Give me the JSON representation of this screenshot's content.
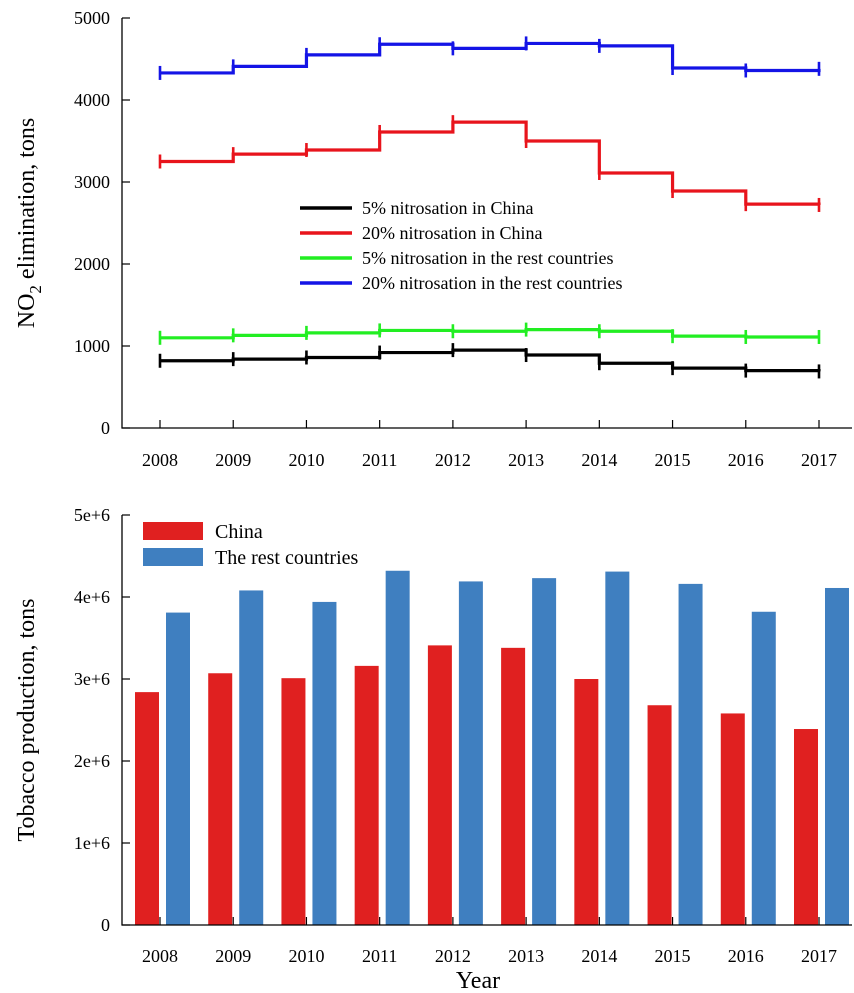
{
  "chart_data": [
    {
      "type": "line",
      "step": true,
      "x": [
        2008,
        2009,
        2010,
        2011,
        2012,
        2013,
        2014,
        2015,
        2016,
        2017
      ],
      "xtick_labels": [
        "2008",
        "2009",
        "2010",
        "2011",
        "2012",
        "2013",
        "2014",
        "2015",
        "2016",
        "2017"
      ],
      "ylim": [
        0,
        5000
      ],
      "yticks": [
        0,
        1000,
        2000,
        3000,
        4000,
        5000
      ],
      "ytick_labels": [
        "0",
        "1000",
        "2000",
        "3000",
        "4000",
        "5000"
      ],
      "ylabel_main": "NO",
      "ylabel_sub": "2",
      "ylabel_rest": " elimination, tons",
      "xlabel": "",
      "grid": false,
      "legend_position": "center",
      "series": [
        {
          "name": "5% nitrosation in China",
          "color": "#000000",
          "values": [
            820,
            840,
            860,
            920,
            950,
            890,
            790,
            730,
            700,
            690
          ]
        },
        {
          "name": "20% nitrosation in China",
          "color": "#e8141c",
          "values": [
            3250,
            3340,
            3390,
            3610,
            3730,
            3500,
            3110,
            2890,
            2730,
            2720
          ]
        },
        {
          "name": "5% nitrosation in the rest countries",
          "color": "#22ee22",
          "values": [
            1100,
            1130,
            1160,
            1190,
            1180,
            1200,
            1180,
            1120,
            1110,
            1110
          ]
        },
        {
          "name": "20% nitrosation in the rest countries",
          "color": "#1414e6",
          "values": [
            4330,
            4410,
            4550,
            4680,
            4630,
            4690,
            4660,
            4390,
            4360,
            4380
          ]
        }
      ]
    },
    {
      "type": "bar",
      "categories": [
        "2008",
        "2009",
        "2010",
        "2011",
        "2012",
        "2013",
        "2014",
        "2015",
        "2016",
        "2017"
      ],
      "ylim": [
        0,
        5000000
      ],
      "yticks": [
        0,
        1000000,
        2000000,
        3000000,
        4000000,
        5000000
      ],
      "ytick_labels": [
        "0",
        "1e+6",
        "2e+6",
        "3e+6",
        "4e+6",
        "5e+6"
      ],
      "ylabel": "Tobacco production, tons",
      "xlabel": "Year",
      "grid": false,
      "legend_position": "top-left",
      "series": [
        {
          "name": "China",
          "color": "#e02020",
          "values": [
            2840000,
            3070000,
            3010000,
            3160000,
            3410000,
            3380000,
            3000000,
            2680000,
            2580000,
            2390000
          ]
        },
        {
          "name": "The rest countries",
          "color": "#3f7fc0",
          "values": [
            3810000,
            4080000,
            3940000,
            4320000,
            4190000,
            4230000,
            4310000,
            4160000,
            3820000,
            4110000
          ]
        }
      ]
    }
  ]
}
